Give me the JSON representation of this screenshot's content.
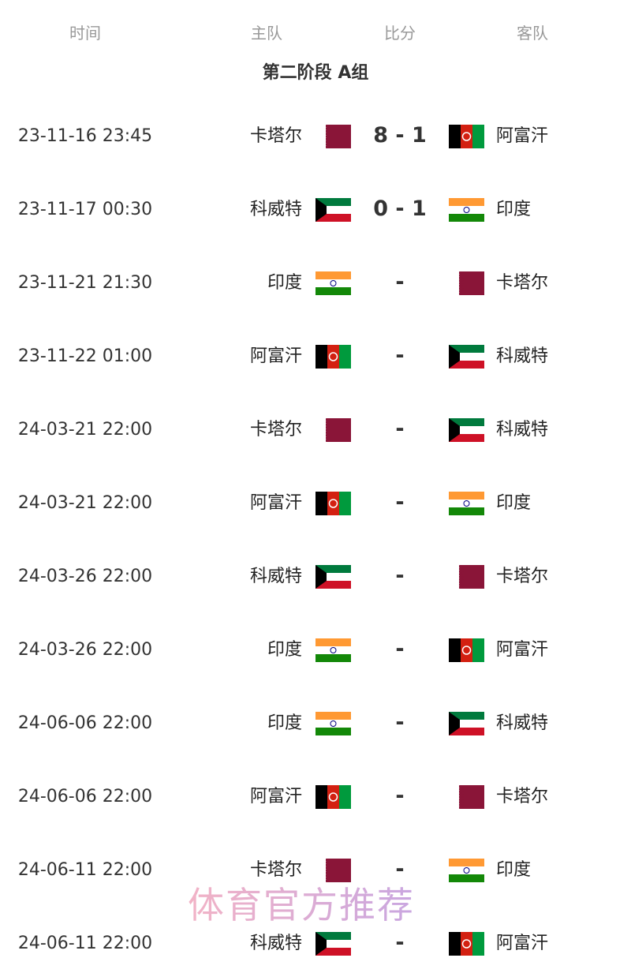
{
  "headers": {
    "time": "时间",
    "home": "主队",
    "score": "比分",
    "away": "客队"
  },
  "group_title": "第二阶段 A组",
  "flag_colors": {
    "qatar": "#8a1538",
    "afghanistan": [
      "#000000",
      "#d32011",
      "#009a3d"
    ],
    "kuwait": [
      "#007a3d",
      "#ffffff",
      "#ce1126",
      "#000000"
    ],
    "india": [
      "#ff9933",
      "#ffffff",
      "#138808",
      "#000080"
    ]
  },
  "matches": [
    {
      "time": "23-11-16 23:45",
      "home": "卡塔尔",
      "home_flag": "qatar",
      "score": "8 - 1",
      "away": "阿富汗",
      "away_flag": "afghanistan"
    },
    {
      "time": "23-11-17 00:30",
      "home": "科威特",
      "home_flag": "kuwait",
      "score": "0 - 1",
      "away": "印度",
      "away_flag": "india"
    },
    {
      "time": "23-11-21 21:30",
      "home": "印度",
      "home_flag": "india",
      "score": "-",
      "away": "卡塔尔",
      "away_flag": "qatar"
    },
    {
      "time": "23-11-22 01:00",
      "home": "阿富汗",
      "home_flag": "afghanistan",
      "score": "-",
      "away": "科威特",
      "away_flag": "kuwait"
    },
    {
      "time": "24-03-21 22:00",
      "home": "卡塔尔",
      "home_flag": "qatar",
      "score": "-",
      "away": "科威特",
      "away_flag": "kuwait"
    },
    {
      "time": "24-03-21 22:00",
      "home": "阿富汗",
      "home_flag": "afghanistan",
      "score": "-",
      "away": "印度",
      "away_flag": "india"
    },
    {
      "time": "24-03-26 22:00",
      "home": "科威特",
      "home_flag": "kuwait",
      "score": "-",
      "away": "卡塔尔",
      "away_flag": "qatar"
    },
    {
      "time": "24-03-26 22:00",
      "home": "印度",
      "home_flag": "india",
      "score": "-",
      "away": "阿富汗",
      "away_flag": "afghanistan"
    },
    {
      "time": "24-06-06 22:00",
      "home": "印度",
      "home_flag": "india",
      "score": "-",
      "away": "科威特",
      "away_flag": "kuwait"
    },
    {
      "time": "24-06-06 22:00",
      "home": "阿富汗",
      "home_flag": "afghanistan",
      "score": "-",
      "away": "卡塔尔",
      "away_flag": "qatar"
    },
    {
      "time": "24-06-11 22:00",
      "home": "卡塔尔",
      "home_flag": "qatar",
      "score": "-",
      "away": "印度",
      "away_flag": "india"
    },
    {
      "time": "24-06-11 22:00",
      "home": "科威特",
      "home_flag": "kuwait",
      "score": "-",
      "away": "阿富汗",
      "away_flag": "afghanistan"
    }
  ],
  "watermark": "体育官方推荐"
}
